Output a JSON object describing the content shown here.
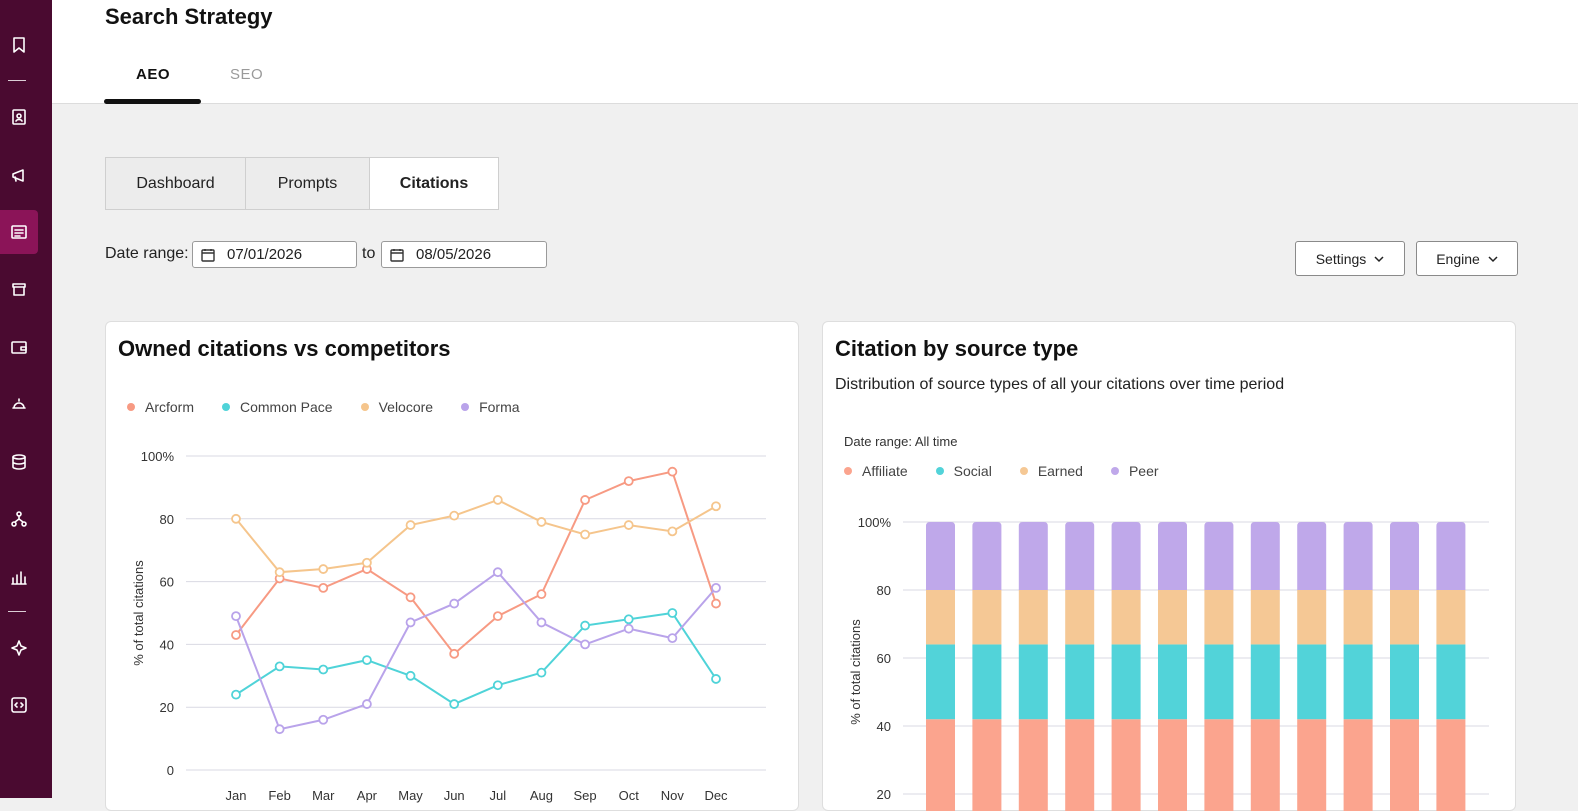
{
  "header": {
    "title": "Search Strategy",
    "tabs": [
      {
        "label": "AEO",
        "active": true
      },
      {
        "label": "SEO",
        "active": false
      }
    ]
  },
  "sidebar": {
    "icons": [
      "bookmark-icon",
      "contacts-icon",
      "megaphone-icon",
      "content-icon",
      "commerce-icon",
      "wallet-icon",
      "service-bell-icon",
      "database-icon",
      "workflow-icon",
      "reports-icon",
      "sparkle-icon",
      "code-icon"
    ],
    "active": "content-icon",
    "bg_color": "#4a0a30",
    "active_color": "#8b1458"
  },
  "subtabs": [
    {
      "label": "Dashboard",
      "active": false
    },
    {
      "label": "Prompts",
      "active": false
    },
    {
      "label": "Citations",
      "active": true
    }
  ],
  "filters": {
    "date_range_label": "Date range:",
    "start_date": "07/01/2026",
    "to_label": "to",
    "end_date": "08/05/2026",
    "settings_label": "Settings",
    "engine_label": "Engine"
  },
  "cards": {
    "owned": {
      "title": "Owned citations vs competitors"
    },
    "source": {
      "title": "Citation by source type",
      "subtitle": "Distribution of source types of all your citations over time period",
      "date_range": "Date range: All time"
    }
  },
  "chart_data": [
    {
      "type": "line",
      "title": "Owned citations vs competitors",
      "xlabel": "",
      "ylabel": "% of total citations",
      "ylim": [
        0,
        100
      ],
      "yticks": [
        "0",
        "20",
        "40",
        "60",
        "80",
        "100%"
      ],
      "categories": [
        "Jan",
        "Feb",
        "Mar",
        "Apr",
        "May",
        "Jun",
        "Jul",
        "Aug",
        "Sep",
        "Oct",
        "Nov",
        "Dec"
      ],
      "grid": true,
      "legend_position": "top-left",
      "series": [
        {
          "name": "Arcform",
          "color": "#f79a83",
          "values": [
            43,
            61,
            58,
            64,
            55,
            37,
            49,
            56,
            86,
            92,
            95,
            53
          ]
        },
        {
          "name": "Common Pace",
          "color": "#4fd3d8",
          "values": [
            24,
            33,
            32,
            35,
            30,
            21,
            27,
            31,
            46,
            48,
            50,
            29
          ]
        },
        {
          "name": "Velocore",
          "color": "#f5c58c",
          "values": [
            80,
            63,
            64,
            66,
            78,
            81,
            86,
            79,
            75,
            78,
            76,
            84
          ]
        },
        {
          "name": "Forma",
          "color": "#b9a3ea",
          "values": [
            49,
            13,
            16,
            21,
            47,
            53,
            63,
            47,
            40,
            45,
            42,
            58
          ]
        }
      ]
    },
    {
      "type": "bar",
      "stacked": true,
      "title": "Citation by source type",
      "xlabel": "",
      "ylabel": "% of total citations",
      "ylim": [
        0,
        100
      ],
      "yticks": [
        "20",
        "40",
        "60",
        "80",
        "100%"
      ],
      "grid": true,
      "legend_position": "top-left",
      "bar_count": 12,
      "series": [
        {
          "name": "Affiliate",
          "color": "#fba48e",
          "values": [
            42,
            42,
            42,
            42,
            42,
            42,
            42,
            42,
            42,
            42,
            42,
            42
          ]
        },
        {
          "name": "Social",
          "color": "#52d3d9",
          "values": [
            22,
            22,
            22,
            22,
            22,
            22,
            22,
            22,
            22,
            22,
            22,
            22
          ]
        },
        {
          "name": "Earned",
          "color": "#f5c895",
          "values": [
            16,
            16,
            16,
            16,
            16,
            16,
            16,
            16,
            16,
            16,
            16,
            16
          ]
        },
        {
          "name": "Peer",
          "color": "#bfa8ea",
          "values": [
            20,
            20,
            20,
            20,
            20,
            20,
            20,
            20,
            20,
            20,
            20,
            20
          ]
        }
      ]
    }
  ]
}
